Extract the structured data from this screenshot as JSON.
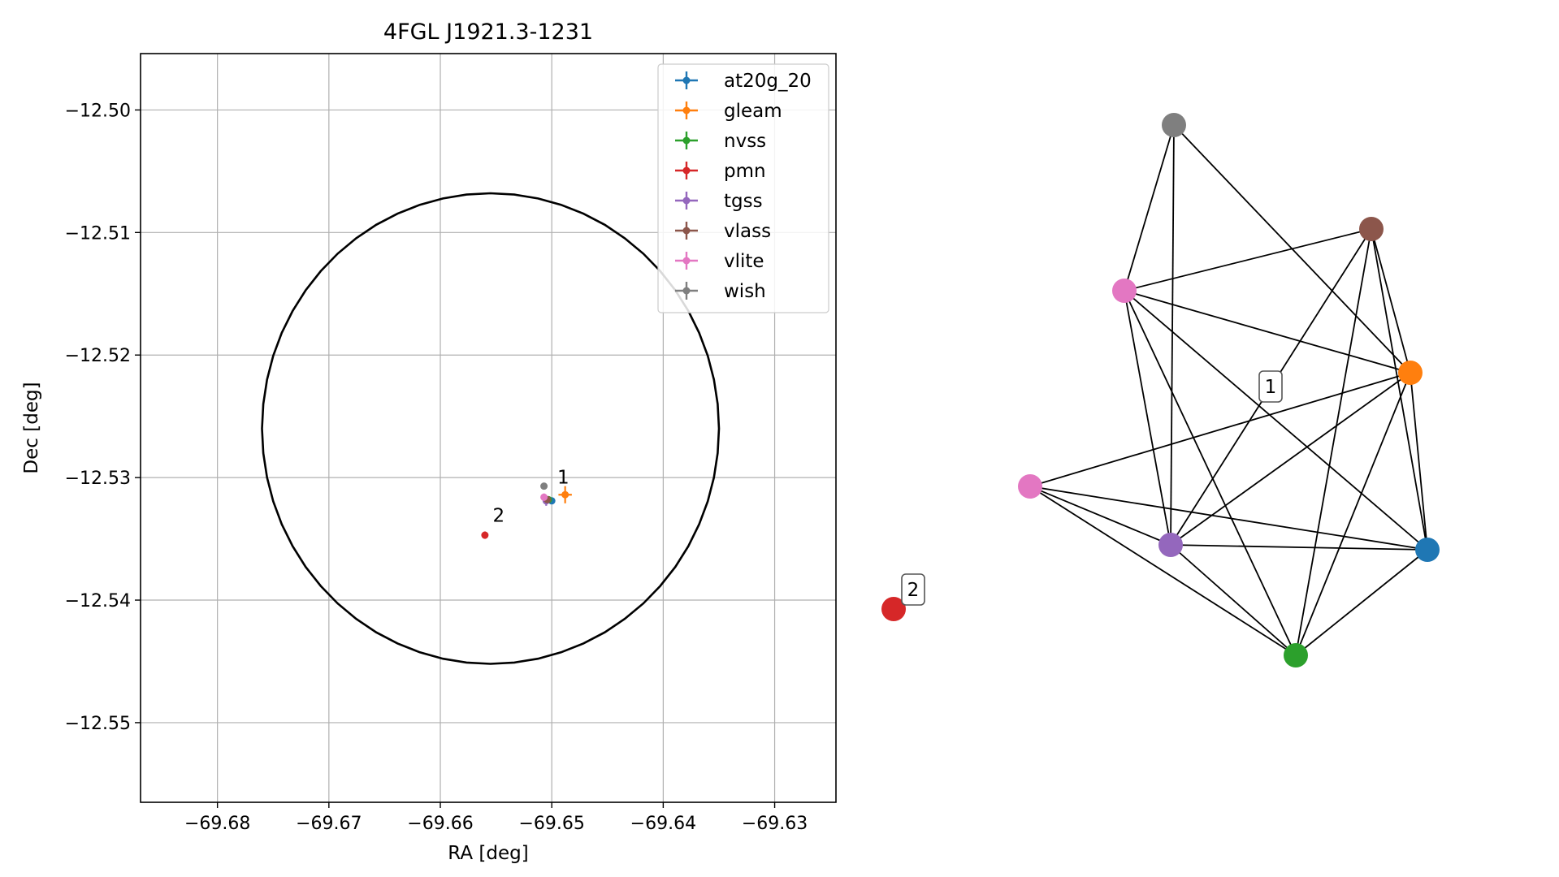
{
  "chart_data": [
    {
      "type": "scatter",
      "title": "4FGL J1921.3-1231",
      "xlabel": "RA [deg]",
      "ylabel": "Dec [deg]",
      "xlim": [
        -69.6869,
        -69.6245
      ],
      "ylim": [
        -12.5565,
        -12.4954
      ],
      "xticks": [
        -69.68,
        -69.67,
        -69.66,
        -69.65,
        -69.64,
        -69.63
      ],
      "yticks": [
        -12.5,
        -12.51,
        -12.52,
        -12.53,
        -12.54,
        -12.55
      ],
      "xtick_labels": [
        "−69.68",
        "−69.67",
        "−69.66",
        "−69.65",
        "−69.64",
        "−69.63"
      ],
      "ytick_labels": [
        "−12.50",
        "−12.51",
        "−12.52",
        "−12.53",
        "−12.54",
        "−12.55"
      ],
      "grid": true,
      "legend_position": "upper right",
      "error_ellipse": {
        "center": [
          -69.6555,
          -12.526
        ],
        "semi_axis_ra": 0.0205,
        "semi_axis_dec": 0.0192
      },
      "series": [
        {
          "name": "at20g_20",
          "color": "#1f77b4",
          "points": [
            {
              "x": -69.65,
              "y": -12.5319,
              "xerr": 0.0003,
              "yerr": 0.0002
            }
          ]
        },
        {
          "name": "gleam",
          "color": "#ff7f0e",
          "points": [
            {
              "x": -69.6488,
              "y": -12.5314,
              "xerr": 0.0006,
              "yerr": 0.0007
            }
          ]
        },
        {
          "name": "nvss",
          "color": "#2ca02c",
          "points": [
            {
              "x": -69.6503,
              "y": -12.5318,
              "xerr": 0.0001,
              "yerr": 0.0001
            }
          ]
        },
        {
          "name": "pmn",
          "color": "#d62728",
          "points": [
            {
              "x": -69.656,
              "y": -12.5347,
              "xerr": 0.0001,
              "yerr": 0.0003
            }
          ]
        },
        {
          "name": "tgss",
          "color": "#9467bd",
          "points": [
            {
              "x": -69.6505,
              "y": -12.5319,
              "xerr": 0.0003,
              "yerr": 0.0004
            }
          ]
        },
        {
          "name": "vlass",
          "color": "#8c564b",
          "points": [
            {
              "x": -69.6504,
              "y": -12.5318,
              "xerr": 0.0001,
              "yerr": 0.0001
            }
          ]
        },
        {
          "name": "vlite",
          "color": "#e377c2",
          "points": [
            {
              "x": -69.6507,
              "y": -12.5316,
              "xerr": 0.0003,
              "yerr": 0.0003
            }
          ]
        },
        {
          "name": "wish",
          "color": "#7f7f7f",
          "points": [
            {
              "x": -69.6507,
              "y": -12.5307,
              "xerr": 0.0001,
              "yerr": 0.0001
            }
          ]
        }
      ],
      "annotations": [
        {
          "text": "1",
          "x": -69.6495,
          "y": -12.5305
        },
        {
          "text": "2",
          "x": -69.6553,
          "y": -12.5336
        }
      ]
    },
    {
      "type": "network",
      "nodes": [
        {
          "id": "wish",
          "color": "#7f7f7f"
        },
        {
          "id": "vlass",
          "color": "#8c564b"
        },
        {
          "id": "vlite_a",
          "color": "#e377c2"
        },
        {
          "id": "gleam",
          "color": "#ff7f0e"
        },
        {
          "id": "vlite_b",
          "color": "#e377c2"
        },
        {
          "id": "tgss",
          "color": "#9467bd"
        },
        {
          "id": "at20g_20",
          "color": "#1f77b4"
        },
        {
          "id": "nvss",
          "color": "#2ca02c"
        },
        {
          "id": "pmn",
          "color": "#d62728"
        }
      ],
      "edges": [
        [
          "wish",
          "vlite_a"
        ],
        [
          "wish",
          "tgss"
        ],
        [
          "wish",
          "gleam"
        ],
        [
          "vlass",
          "vlite_a"
        ],
        [
          "vlass",
          "tgss"
        ],
        [
          "vlass",
          "gleam"
        ],
        [
          "vlass",
          "at20g_20"
        ],
        [
          "vlass",
          "nvss"
        ],
        [
          "vlite_a",
          "gleam"
        ],
        [
          "vlite_a",
          "tgss"
        ],
        [
          "vlite_a",
          "nvss"
        ],
        [
          "vlite_a",
          "at20g_20"
        ],
        [
          "gleam",
          "vlite_b"
        ],
        [
          "gleam",
          "tgss"
        ],
        [
          "gleam",
          "nvss"
        ],
        [
          "gleam",
          "at20g_20"
        ],
        [
          "vlite_b",
          "tgss"
        ],
        [
          "vlite_b",
          "at20g_20"
        ],
        [
          "vlite_b",
          "nvss"
        ],
        [
          "tgss",
          "at20g_20"
        ],
        [
          "tgss",
          "nvss"
        ],
        [
          "at20g_20",
          "nvss"
        ]
      ],
      "labels": [
        {
          "text": "1",
          "group": "component-1"
        },
        {
          "text": "2",
          "group": "component-2"
        }
      ]
    }
  ]
}
